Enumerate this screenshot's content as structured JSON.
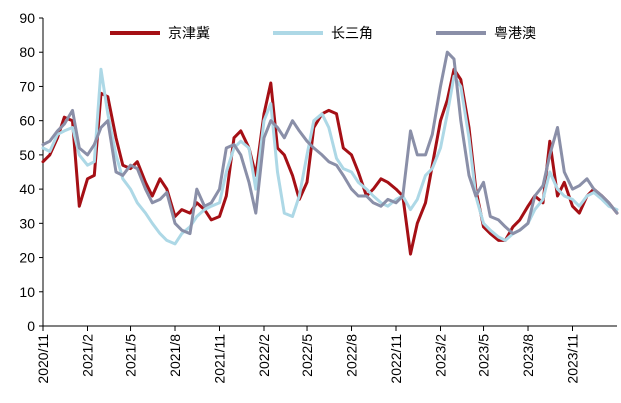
{
  "chart_data": {
    "type": "line",
    "title": "",
    "xlabel": "",
    "ylabel": "",
    "ylim": [
      0,
      90
    ],
    "yticks": [
      0,
      10,
      20,
      30,
      40,
      50,
      60,
      70,
      80,
      90
    ],
    "grid": false,
    "legend_position": "top",
    "x_start": "2020-11",
    "x_end": "2024-02",
    "xticks": [
      "2020/11",
      "2021/2",
      "2021/5",
      "2021/8",
      "2021/11",
      "2022/2",
      "2022/5",
      "2022/8",
      "2022/11",
      "2023/2",
      "2023/5",
      "2023/8",
      "2023/11"
    ],
    "x": [
      "2020-11-01",
      "2020-11-15",
      "2020-12-01",
      "2020-12-15",
      "2021-01-01",
      "2021-01-15",
      "2021-02-01",
      "2021-02-15",
      "2021-03-01",
      "2021-03-15",
      "2021-04-01",
      "2021-04-15",
      "2021-05-01",
      "2021-05-15",
      "2021-06-01",
      "2021-06-15",
      "2021-07-01",
      "2021-07-15",
      "2021-08-01",
      "2021-08-15",
      "2021-09-01",
      "2021-09-15",
      "2021-10-01",
      "2021-10-15",
      "2021-11-01",
      "2021-11-15",
      "2021-12-01",
      "2021-12-15",
      "2022-01-01",
      "2022-01-15",
      "2022-02-01",
      "2022-02-15",
      "2022-03-01",
      "2022-03-15",
      "2022-04-01",
      "2022-04-15",
      "2022-05-01",
      "2022-05-15",
      "2022-06-01",
      "2022-06-15",
      "2022-07-01",
      "2022-07-15",
      "2022-08-01",
      "2022-08-15",
      "2022-09-01",
      "2022-09-15",
      "2022-10-01",
      "2022-10-15",
      "2022-11-01",
      "2022-11-15",
      "2022-12-01",
      "2022-12-15",
      "2023-01-01",
      "2023-01-15",
      "2023-02-01",
      "2023-02-15",
      "2023-03-01",
      "2023-03-15",
      "2023-04-01",
      "2023-04-15",
      "2023-05-01",
      "2023-05-15",
      "2023-06-01",
      "2023-06-15",
      "2023-07-01",
      "2023-07-15",
      "2023-08-01",
      "2023-08-15",
      "2023-09-01",
      "2023-09-15",
      "2023-10-01",
      "2023-10-15",
      "2023-11-01",
      "2023-11-15",
      "2023-12-01",
      "2023-12-15",
      "2024-01-01",
      "2024-01-15",
      "2024-02-01"
    ],
    "series": [
      {
        "name": "京津冀",
        "color": "#A50F15",
        "values": [
          48,
          50,
          55,
          61,
          60,
          35,
          43,
          44,
          68,
          67,
          55,
          47,
          46,
          48,
          42,
          38,
          43,
          40,
          32,
          34,
          33,
          36,
          34,
          31,
          32,
          38,
          55,
          57,
          52,
          44,
          62,
          71,
          52,
          50,
          44,
          37,
          42,
          58,
          62,
          63,
          62,
          52,
          50,
          45,
          38,
          40,
          43,
          42,
          40,
          38,
          21,
          30,
          36,
          47,
          60,
          66,
          75,
          72,
          58,
          40,
          29,
          27,
          25,
          25,
          29,
          31,
          35,
          38,
          36,
          54,
          38,
          42,
          35,
          33,
          38,
          40,
          38,
          36,
          33
        ]
      },
      {
        "name": "长三角",
        "color": "#ADD8E6",
        "values": [
          52,
          51,
          56,
          57,
          58,
          50,
          47,
          48,
          75,
          62,
          50,
          43,
          40,
          36,
          33,
          30,
          27,
          25,
          24,
          27,
          29,
          32,
          34,
          35,
          36,
          45,
          52,
          54,
          52,
          40,
          60,
          65,
          45,
          33,
          32,
          38,
          50,
          60,
          62,
          58,
          49,
          46,
          45,
          42,
          40,
          38,
          36,
          35,
          37,
          38,
          34,
          37,
          44,
          46,
          52,
          62,
          73,
          70,
          55,
          38,
          30,
          28,
          26,
          25,
          27,
          28,
          30,
          34,
          37,
          45,
          40,
          38,
          37,
          35,
          38,
          39,
          37,
          35,
          34
        ]
      },
      {
        "name": "粤港澳",
        "color": "#8A8FA8",
        "values": [
          53,
          54,
          57,
          59,
          63,
          52,
          50,
          53,
          58,
          60,
          45,
          44,
          47,
          46,
          40,
          36,
          37,
          39,
          30,
          28,
          27,
          40,
          35,
          36,
          40,
          52,
          53,
          50,
          42,
          33,
          55,
          60,
          58,
          55,
          60,
          57,
          54,
          52,
          50,
          48,
          47,
          44,
          40,
          38,
          38,
          36,
          35,
          37,
          36,
          38,
          57,
          50,
          50,
          56,
          70,
          80,
          78,
          60,
          44,
          38,
          42,
          32,
          31,
          29,
          27,
          28,
          30,
          38,
          41,
          50,
          58,
          45,
          40,
          41,
          43,
          40,
          38,
          36,
          33
        ]
      }
    ]
  }
}
